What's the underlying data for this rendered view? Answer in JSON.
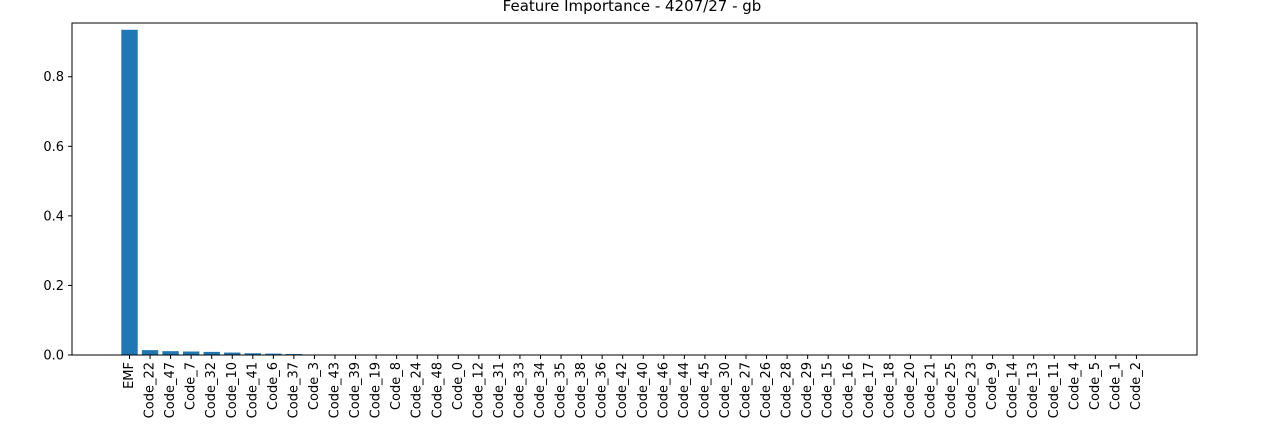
{
  "chart_data": {
    "type": "bar",
    "title": "Feature Importance - 4207/27 - gb",
    "xlabel": "",
    "ylabel": "",
    "ylim": [
      0,
      0.9545
    ],
    "yticks": [
      0.0,
      0.2,
      0.4,
      0.6,
      0.8
    ],
    "ytick_labels": [
      "0.0",
      "0.2",
      "0.4",
      "0.6",
      "0.8"
    ],
    "grid": false,
    "bar_color": "#1f77b4",
    "categories": [
      "EMF",
      "Code_22",
      "Code_47",
      "Code_7",
      "Code_32",
      "Code_10",
      "Code_41",
      "Code_6",
      "Code_37",
      "Code_3",
      "Code_43",
      "Code_39",
      "Code_19",
      "Code_8",
      "Code_24",
      "Code_48",
      "Code_0",
      "Code_12",
      "Code_31",
      "Code_33",
      "Code_34",
      "Code_35",
      "Code_38",
      "Code_36",
      "Code_42",
      "Code_40",
      "Code_46",
      "Code_44",
      "Code_45",
      "Code_30",
      "Code_27",
      "Code_26",
      "Code_28",
      "Code_29",
      "Code_15",
      "Code_16",
      "Code_17",
      "Code_18",
      "Code_20",
      "Code_21",
      "Code_25",
      "Code_23",
      "Code_9",
      "Code_14",
      "Code_13",
      "Code_11",
      "Code_4",
      "Code_5",
      "Code_1",
      "Code_2"
    ],
    "values": [
      0.935,
      0.014,
      0.011,
      0.01,
      0.009,
      0.007,
      0.005,
      0.004,
      0.003,
      0.001,
      0.0005,
      0.0003,
      0.0002,
      0.0001,
      0,
      0,
      0,
      0,
      0,
      0,
      0,
      0,
      0,
      0,
      0,
      0,
      0,
      0,
      0,
      0,
      0,
      0,
      0,
      0,
      0,
      0,
      0,
      0,
      0,
      0,
      0,
      0,
      0,
      0,
      0,
      0,
      0,
      0,
      0,
      0
    ]
  }
}
